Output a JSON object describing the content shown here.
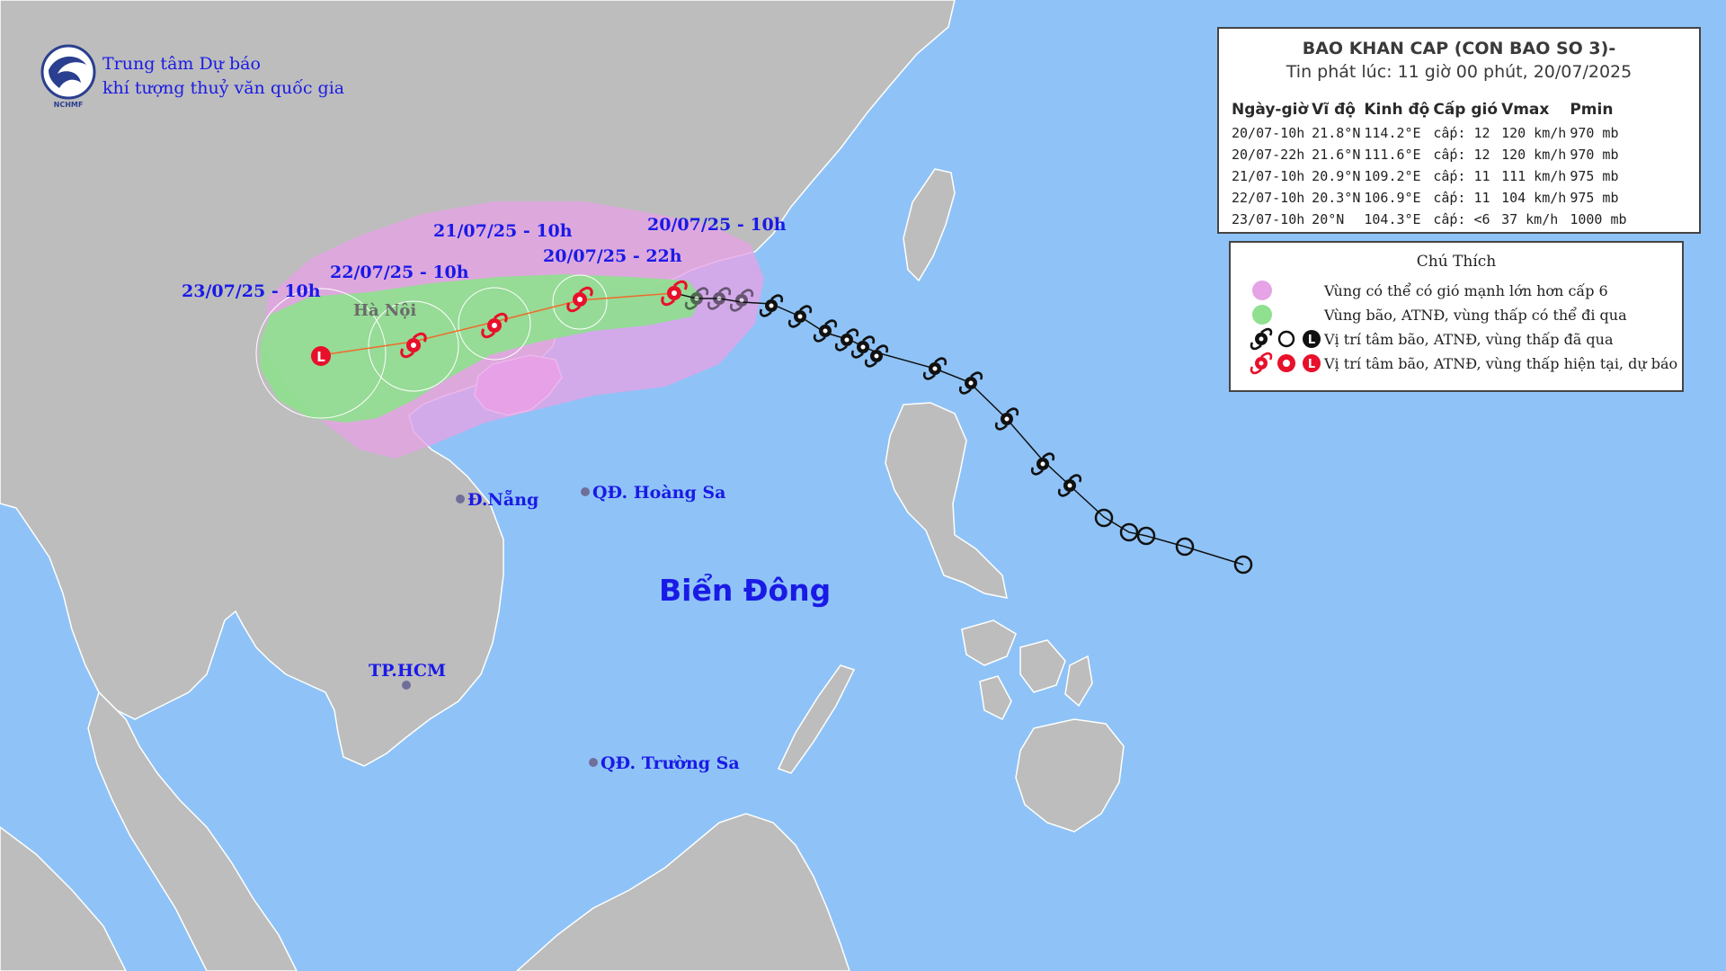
{
  "header": {
    "org_line1": "Trung tâm Dự báo",
    "org_line2": "khí tượng thuỷ văn quốc gia",
    "logo_text": "NCHMF"
  },
  "bulletin": {
    "title": "BAO KHAN CAP (CON BAO SO 3)-",
    "issued": "Tin phát lúc: 11 giờ 00 phút, 20/07/2025",
    "columns": [
      "Ngày-giờ",
      "Vĩ độ",
      "Kinh độ",
      "Cấp gió",
      "Vmax",
      "Pmin"
    ],
    "rows": [
      {
        "time": "20/07-10h",
        "lat": "21.8°N",
        "lon": "114.2°E",
        "level": "cấp: 12",
        "vmax": "120 km/h",
        "pmin": "970 mb"
      },
      {
        "time": "20/07-22h",
        "lat": "21.6°N",
        "lon": "111.6°E",
        "level": "cấp: 12",
        "vmax": "120 km/h",
        "pmin": "970 mb"
      },
      {
        "time": "21/07-10h",
        "lat": "20.9°N",
        "lon": "109.2°E",
        "level": "cấp: 11",
        "vmax": "111 km/h",
        "pmin": "975 mb"
      },
      {
        "time": "22/07-10h",
        "lat": "20.3°N",
        "lon": "106.9°E",
        "level": "cấp: 11",
        "vmax": "104 km/h",
        "pmin": "975 mb"
      },
      {
        "time": "23/07-10h",
        "lat": "20°N",
        "lon": "104.3°E",
        "level": "cấp: <6",
        "vmax": "37 km/h",
        "pmin": "1000 mb"
      }
    ]
  },
  "legend": {
    "title": "Chú Thích",
    "items": [
      {
        "text": "Vùng có thể có gió mạnh lớn hơn cấp 6",
        "symbol": "pink-dot",
        "color": "#e6a3e6"
      },
      {
        "text": "Vùng bão, ATNĐ, vùng thấp có thể đi qua",
        "symbol": "green-dot",
        "color": "#8fe08f"
      },
      {
        "text": "Vị trí tâm bão, ATNĐ, vùng thấp đã qua",
        "symbol": "black-storm-symbols",
        "color": "#111111"
      },
      {
        "text": "Vị trí tâm bão, ATNĐ, vùng thấp hiện tại, dự báo",
        "symbol": "red-storm-symbols",
        "color": "#e8102a"
      }
    ]
  },
  "map": {
    "forecast_labels": [
      "20/07/25 - 10h",
      "20/07/25 - 22h",
      "21/07/25 - 10h",
      "22/07/25 - 10h",
      "23/07/25 - 10h"
    ],
    "places": {
      "hanoi": "Hà Nội",
      "danang": "Đ.Nẵng",
      "hoangsa": "QĐ. Hoàng Sa",
      "hcm": "TP.HCM",
      "truongsa": "QĐ. Trường Sa"
    },
    "sea_name": "Biển Đông",
    "colors": {
      "sea": "#8fc3f7",
      "land": "#bdbdbd",
      "wind_zone": "#e6a3e6",
      "storm_zone": "#8fe08f",
      "forecast_symbol": "#e8102a",
      "past_symbol": "#111111",
      "track_line": "#f06a2a"
    }
  }
}
